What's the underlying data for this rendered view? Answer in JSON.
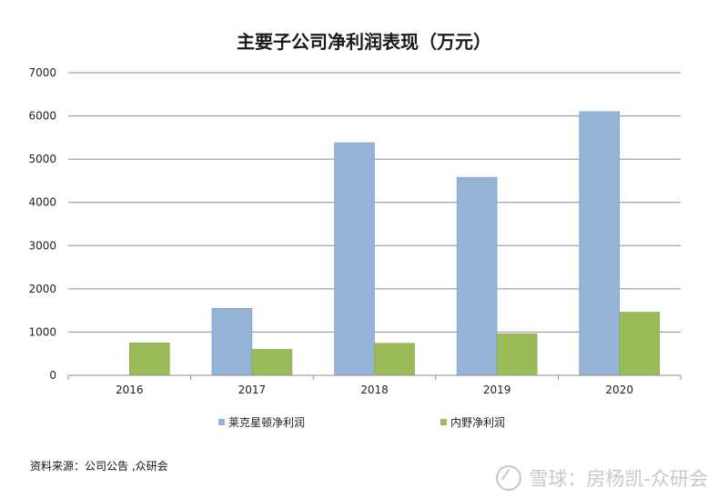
{
  "chart_data": {
    "type": "bar",
    "title": "主要子公司净利润表现（万元）",
    "categories": [
      "2016",
      "2017",
      "2018",
      "2019",
      "2020"
    ],
    "series": [
      {
        "name": "莱克星顿净利润",
        "color": "#95B3D7",
        "values": [
          null,
          1550,
          5380,
          4580,
          6100
        ]
      },
      {
        "name": "内野净利润",
        "color": "#9BBB59",
        "values": [
          750,
          600,
          740,
          960,
          1460
        ]
      }
    ],
    "yticks": [
      0,
      1000,
      2000,
      3000,
      4000,
      5000,
      6000,
      7000
    ],
    "ylim": [
      0,
      7000
    ],
    "xlabel": "",
    "ylabel": "",
    "grid": true,
    "legend_position": "bottom"
  },
  "source_note": "资料来源：公司公告 ,众研会",
  "watermark": "雪球：房杨凯-众研会"
}
